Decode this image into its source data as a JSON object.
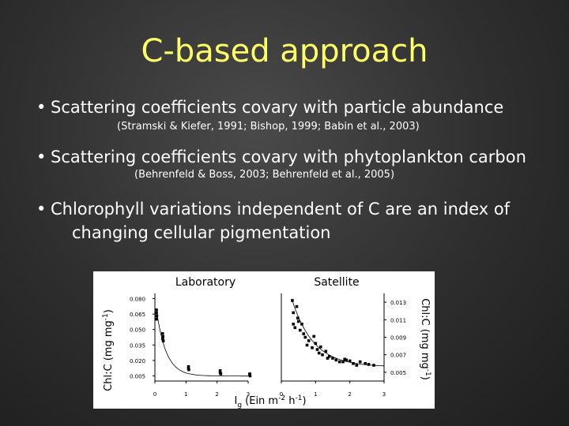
{
  "slide": {
    "title": "C-based approach",
    "bullets": [
      {
        "symbol": "•",
        "text": "Scattering coefficients covary with particle abundance",
        "ref": "(Stramski & Kiefer, 1991; Bishop, 1999; Babin et al., 2003)"
      },
      {
        "symbol": "•",
        "text": "Scattering coefficients covary with phytoplankton carbon",
        "ref": "(Behrenfeld & Boss, 2003; Behrenfeld et al., 2005)"
      },
      {
        "symbol": "•",
        "text": "Chlorophyll variations independent of C are an index of",
        "text_cont": "changing cellular pigmentation"
      }
    ]
  },
  "figure": {
    "panel_left_title": "Laboratory",
    "panel_right_title": "Satellite",
    "ylabel_left_parts": [
      "Chl:C (mg mg",
      "-1",
      ")"
    ],
    "ylabel_right_parts": [
      "Chl:C (mg mg",
      "-1",
      ")"
    ],
    "xlabel_parts": [
      "I",
      "g",
      " (Ein m",
      "-2",
      " h",
      "-1",
      ")"
    ]
  },
  "chart_data": [
    {
      "type": "scatter",
      "title": "Laboratory",
      "xlabel": "Ig (Ein m-2 h-1)",
      "ylabel": "Chl:C (mg mg-1)",
      "xlim": [
        0,
        3
      ],
      "ylim": [
        0.0,
        0.085
      ],
      "x_ticks": [
        "0",
        "1",
        "2",
        "3"
      ],
      "y_ticks": [
        "0.005",
        "0.020",
        "0.035",
        "0.050",
        "0.065",
        "0.080"
      ],
      "y_tick_values": [
        0.005,
        0.02,
        0.035,
        0.05,
        0.065,
        0.08
      ],
      "points": [
        [
          0.05,
          0.069
        ],
        [
          0.05,
          0.066
        ],
        [
          0.06,
          0.063
        ],
        [
          0.05,
          0.06
        ],
        [
          0.25,
          0.046
        ],
        [
          0.26,
          0.043
        ],
        [
          0.25,
          0.041
        ],
        [
          0.27,
          0.039
        ],
        [
          1.08,
          0.014
        ],
        [
          1.08,
          0.012
        ],
        [
          1.09,
          0.011
        ],
        [
          2.1,
          0.01
        ],
        [
          2.1,
          0.008
        ],
        [
          2.12,
          0.007
        ],
        [
          3.05,
          0.007
        ],
        [
          3.05,
          0.006
        ],
        [
          3.06,
          0.005
        ]
      ],
      "fit_curve": true
    },
    {
      "type": "scatter",
      "title": "Satellite",
      "xlabel": "Ig (Ein m-2 h-1)",
      "ylabel": "Chl:C (mg mg-1)",
      "xlim": [
        0,
        3
      ],
      "ylim": [
        0.004,
        0.014
      ],
      "x_ticks": [
        "0",
        "1",
        "2",
        "3"
      ],
      "y_ticks": [
        "0.005",
        "0.007",
        "0.009",
        "0.011",
        "0.013"
      ],
      "y_tick_values": [
        0.005,
        0.007,
        0.009,
        0.011,
        0.013
      ],
      "points": [
        [
          0.32,
          0.0132
        ],
        [
          0.45,
          0.0125
        ],
        [
          0.35,
          0.0118
        ],
        [
          0.48,
          0.0112
        ],
        [
          0.5,
          0.0108
        ],
        [
          0.35,
          0.0105
        ],
        [
          0.4,
          0.0101
        ],
        [
          0.6,
          0.0105
        ],
        [
          0.55,
          0.0098
        ],
        [
          0.65,
          0.0094
        ],
        [
          0.7,
          0.009
        ],
        [
          0.8,
          0.0086
        ],
        [
          0.75,
          0.0081
        ],
        [
          0.9,
          0.0078
        ],
        [
          1.0,
          0.0083
        ],
        [
          1.05,
          0.0076
        ],
        [
          1.1,
          0.0072
        ],
        [
          1.2,
          0.007
        ],
        [
          1.3,
          0.0074
        ],
        [
          1.4,
          0.0068
        ],
        [
          1.5,
          0.0066
        ],
        [
          1.6,
          0.0064
        ],
        [
          1.7,
          0.0062
        ],
        [
          1.8,
          0.0062
        ],
        [
          1.85,
          0.0065
        ],
        [
          1.9,
          0.0064
        ],
        [
          2.0,
          0.0063
        ],
        [
          2.1,
          0.006
        ],
        [
          2.2,
          0.0058
        ],
        [
          2.3,
          0.0062
        ],
        [
          2.45,
          0.006
        ],
        [
          2.55,
          0.0059
        ],
        [
          2.7,
          0.0058
        ],
        [
          0.95,
          0.0091
        ],
        [
          1.15,
          0.0079
        ],
        [
          1.35,
          0.0066
        ]
      ],
      "fit_curve": true
    }
  ]
}
